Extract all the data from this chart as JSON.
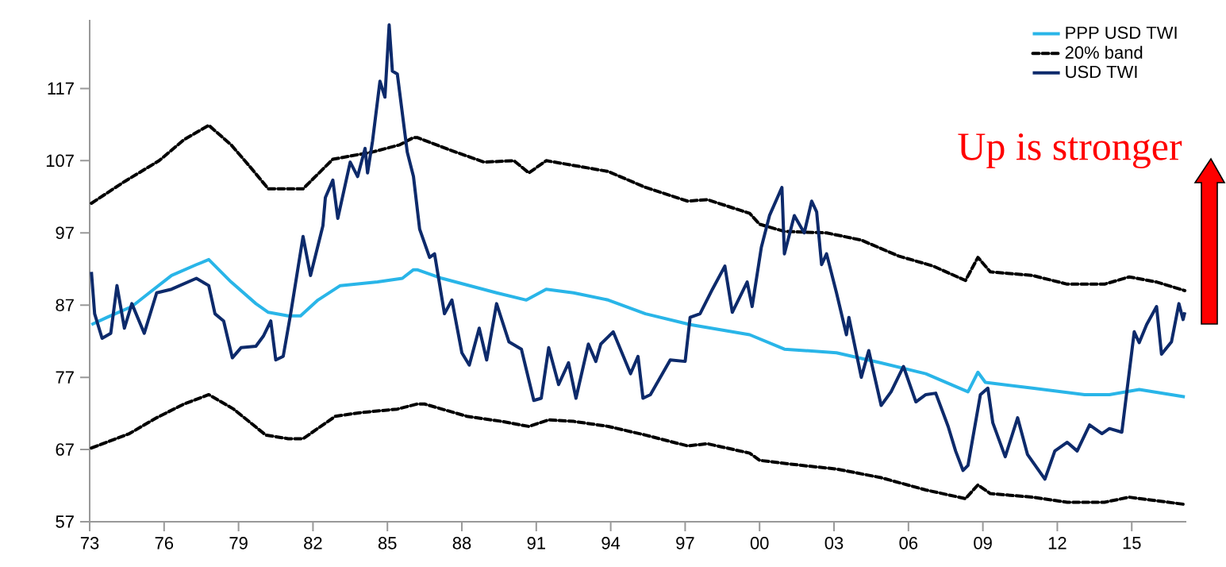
{
  "chart_data": {
    "type": "line",
    "xlim": [
      1973,
      2017.2
    ],
    "ylim": [
      57,
      126.5
    ],
    "xticks": [
      {
        "value": 1973,
        "label": "73"
      },
      {
        "value": 1976,
        "label": "76"
      },
      {
        "value": 1979,
        "label": "79"
      },
      {
        "value": 1982,
        "label": "82"
      },
      {
        "value": 1985,
        "label": "85"
      },
      {
        "value": 1988,
        "label": "88"
      },
      {
        "value": 1991,
        "label": "91"
      },
      {
        "value": 1994,
        "label": "94"
      },
      {
        "value": 1997,
        "label": "97"
      },
      {
        "value": 2000,
        "label": "00"
      },
      {
        "value": 2003,
        "label": "03"
      },
      {
        "value": 2006,
        "label": "06"
      },
      {
        "value": 2009,
        "label": "09"
      },
      {
        "value": 2012,
        "label": "12"
      },
      {
        "value": 2015,
        "label": "15"
      }
    ],
    "yticks": [
      57,
      67,
      77,
      87,
      97,
      107,
      117
    ],
    "legend": "top right",
    "marker": "none",
    "grid": false,
    "annotations": [
      "Up is stronger"
    ],
    "series": [
      {
        "name": "PPP USD TWI",
        "color": "#29b5e8",
        "line_style": "solid",
        "x": [
          1973.07,
          1973.7,
          1974.7,
          1975.4,
          1976.3,
          1977.3,
          1977.8,
          1978.7,
          1979.7,
          1980.2,
          1981.0,
          1981.5,
          1982.2,
          1983.1,
          1984.6,
          1985.6,
          1986.05,
          1986.2,
          1987.2,
          1989.4,
          1990.6,
          1991.4,
          1992.5,
          1993.9,
          1995.4,
          1997.2,
          1999.6,
          2001.0,
          2003.1,
          2004.9,
          2006.7,
          2008.4,
          2008.8,
          2009.1,
          2011.0,
          2013.1,
          2014.1,
          2015.3,
          2017.14
        ],
        "values": [
          84.3,
          85.3,
          86.8,
          88.7,
          91.1,
          92.6,
          93.3,
          90.2,
          87.2,
          86.0,
          85.5,
          85.5,
          87.7,
          89.7,
          90.2,
          90.7,
          91.9,
          91.9,
          90.7,
          88.7,
          87.7,
          89.2,
          88.7,
          87.7,
          85.8,
          84.3,
          82.9,
          80.9,
          80.4,
          79.0,
          77.5,
          75.0,
          77.7,
          76.3,
          75.5,
          74.6,
          74.6,
          75.3,
          74.3
        ]
      },
      {
        "name": "20% band",
        "color": "#000000",
        "line_style": "dashed",
        "x": [
          1973.07,
          1974.4,
          1975.8,
          1976.8,
          1977.8,
          1978.7,
          1979.5,
          1980.2,
          1981.0,
          1981.6,
          1982.8,
          1984.4,
          1985.5,
          1986.05,
          1986.2,
          1987.5,
          1988.9,
          1990.1,
          1990.7,
          1991.4,
          1993.4,
          1993.9,
          1995.4,
          1997.1,
          1997.9,
          1999.6,
          2000.0,
          2001.0,
          2002.7,
          2004.1,
          2005.6,
          2007.0,
          2008.3,
          2008.8,
          2009.3,
          2011.0,
          2012.4,
          2013.9,
          2014.9,
          2016.0,
          2017.14
        ],
        "values": [
          101.1,
          104.1,
          107.0,
          109.9,
          111.9,
          109.2,
          106.0,
          103.1,
          103.1,
          103.1,
          107.2,
          108.2,
          109.2,
          110.2,
          110.2,
          108.5,
          106.8,
          107.0,
          105.3,
          107.0,
          105.8,
          105.5,
          103.3,
          101.4,
          101.6,
          99.7,
          98.2,
          97.2,
          97.0,
          96.0,
          93.8,
          92.4,
          90.4,
          93.6,
          91.6,
          91.1,
          89.9,
          89.9,
          90.9,
          90.2,
          89.0
        ]
      },
      {
        "name": "USD TWI",
        "color": "#0d2a6b",
        "line_style": "solid",
        "x": [
          1973.07,
          1973.2,
          1973.5,
          1973.85,
          1974.1,
          1974.4,
          1974.7,
          1975.2,
          1975.7,
          1976.3,
          1977.3,
          1977.8,
          1978.05,
          1978.4,
          1978.75,
          1979.1,
          1979.7,
          1980.0,
          1980.3,
          1980.5,
          1980.8,
          1981.1,
          1981.6,
          1981.9,
          1982.4,
          1982.5,
          1982.8,
          1983.0,
          1983.5,
          1983.8,
          1984.1,
          1984.2,
          1984.4,
          1984.7,
          1984.9,
          1985.07,
          1985.2,
          1985.4,
          1985.8,
          1986.05,
          1986.3,
          1986.7,
          1986.9,
          1987.3,
          1987.6,
          1988.0,
          1988.3,
          1988.7,
          1989.0,
          1989.4,
          1989.9,
          1990.4,
          1990.9,
          1991.2,
          1991.5,
          1991.9,
          1992.3,
          1992.6,
          1993.1,
          1993.4,
          1993.6,
          1994.1,
          1994.8,
          1995.1,
          1995.3,
          1995.6,
          1996.4,
          1997.0,
          1997.2,
          1997.6,
          1998.1,
          1998.6,
          1998.9,
          1999.5,
          1999.7,
          2000.07,
          2000.4,
          2000.9,
          2001.0,
          2001.4,
          2001.8,
          2002.1,
          2002.3,
          2002.5,
          2002.7,
          2003.1,
          2003.5,
          2003.6,
          2004.1,
          2004.4,
          2004.9,
          2005.3,
          2005.8,
          2006.3,
          2006.7,
          2007.1,
          2007.6,
          2007.9,
          2008.2,
          2008.4,
          2008.9,
          2009.2,
          2009.4,
          2009.9,
          2010.4,
          2010.8,
          2011.5,
          2011.9,
          2012.4,
          2012.8,
          2013.3,
          2013.8,
          2014.1,
          2014.6,
          2015.1,
          2015.3,
          2015.6,
          2016.0,
          2016.2,
          2016.6,
          2016.9,
          2017.07,
          2017.14
        ],
        "values": [
          91.6,
          85.8,
          82.4,
          83.1,
          89.7,
          83.8,
          87.2,
          83.1,
          88.7,
          89.2,
          90.7,
          89.7,
          85.8,
          84.8,
          79.7,
          81.1,
          81.3,
          82.7,
          84.8,
          79.4,
          79.9,
          85.8,
          96.5,
          91.1,
          98.0,
          101.9,
          104.3,
          99.0,
          106.8,
          104.8,
          108.7,
          105.3,
          109.7,
          118.0,
          115.8,
          125.8,
          119.4,
          119.0,
          108.2,
          104.8,
          97.5,
          93.6,
          94.1,
          85.8,
          87.7,
          80.4,
          78.7,
          83.8,
          79.4,
          87.2,
          81.9,
          80.9,
          73.8,
          74.1,
          81.1,
          76.0,
          79.0,
          74.1,
          81.6,
          79.2,
          81.6,
          83.3,
          77.5,
          79.9,
          74.1,
          74.6,
          79.4,
          79.2,
          85.3,
          85.8,
          89.2,
          92.4,
          86.0,
          90.2,
          86.8,
          95.0,
          99.4,
          103.3,
          94.1,
          99.4,
          97.0,
          101.4,
          99.9,
          92.6,
          94.1,
          88.7,
          82.9,
          85.3,
          77.0,
          80.7,
          73.1,
          75.0,
          78.5,
          73.6,
          74.6,
          74.8,
          70.2,
          66.8,
          64.1,
          64.8,
          74.6,
          75.5,
          70.7,
          66.0,
          71.4,
          66.3,
          62.9,
          66.8,
          68.0,
          66.8,
          70.4,
          69.2,
          69.9,
          69.4,
          83.3,
          81.8,
          84.3,
          86.8,
          80.2,
          81.9,
          87.2,
          85.0,
          86.0
        ]
      },
      {
        "color": "#000000",
        "line_style": "dashed",
        "x": [
          1973.07,
          1974.6,
          1975.7,
          1976.8,
          1977.8,
          1978.8,
          1980.1,
          1981.0,
          1981.6,
          1982.9,
          1983.9,
          1985.4,
          1986.2,
          1986.5,
          1988.2,
          1989.6,
          1990.7,
          1991.5,
          1992.5,
          1993.9,
          1995.4,
          1997.1,
          1997.9,
          1999.6,
          2000.0,
          2001.7,
          2003.1,
          2004.9,
          2006.7,
          2008.3,
          2008.8,
          2009.3,
          2011.0,
          2012.4,
          2013.9,
          2014.9,
          2016.0,
          2017.14
        ],
        "values": [
          67.2,
          69.2,
          71.4,
          73.3,
          74.6,
          72.6,
          69.0,
          68.5,
          68.5,
          71.6,
          72.1,
          72.6,
          73.3,
          73.3,
          71.6,
          70.9,
          70.2,
          71.1,
          70.9,
          70.2,
          69.0,
          67.5,
          67.8,
          66.5,
          65.5,
          64.8,
          64.3,
          63.1,
          61.4,
          60.2,
          62.1,
          60.9,
          60.4,
          59.7,
          59.7,
          60.4,
          59.9,
          59.4
        ]
      }
    ]
  }
}
